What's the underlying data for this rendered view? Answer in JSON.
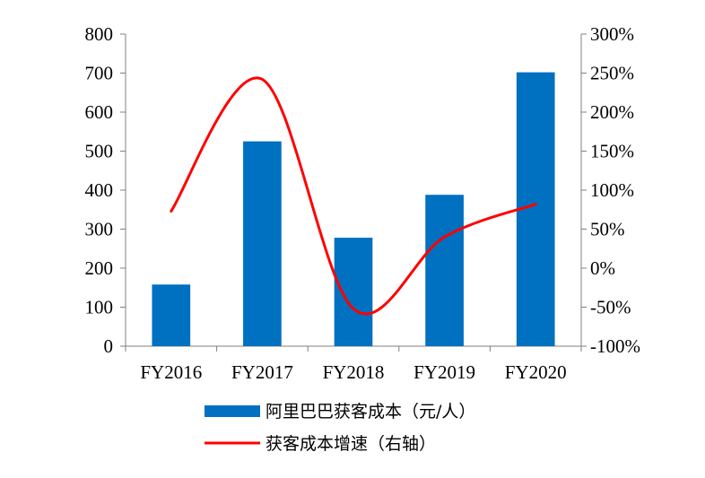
{
  "chart_data": {
    "type": "bar",
    "categories": [
      "FY2016",
      "FY2017",
      "FY2018",
      "FY2019",
      "FY2020"
    ],
    "series": [
      {
        "name": "阿里巴巴获客成本（元/人）",
        "type": "bar",
        "axis": "left",
        "color": "#0070C0",
        "values": [
          158,
          525,
          278,
          388,
          702
        ]
      },
      {
        "name": "获客成本增速（右轴）",
        "type": "line",
        "axis": "right",
        "smooth": true,
        "color": "#FF0000",
        "values": [
          73,
          242,
          -52,
          40,
          82
        ]
      }
    ],
    "y_left": {
      "ylim": [
        0,
        800
      ],
      "ticks": [
        0,
        100,
        200,
        300,
        400,
        500,
        600,
        700,
        800
      ]
    },
    "y_right": {
      "ylim": [
        -100,
        300
      ],
      "unit": "%",
      "ticks": [
        -100,
        -50,
        0,
        50,
        100,
        150,
        200,
        250,
        300
      ]
    },
    "title": "",
    "xlabel": "",
    "ylabel": "",
    "grid": false,
    "legend_position": "bottom"
  }
}
